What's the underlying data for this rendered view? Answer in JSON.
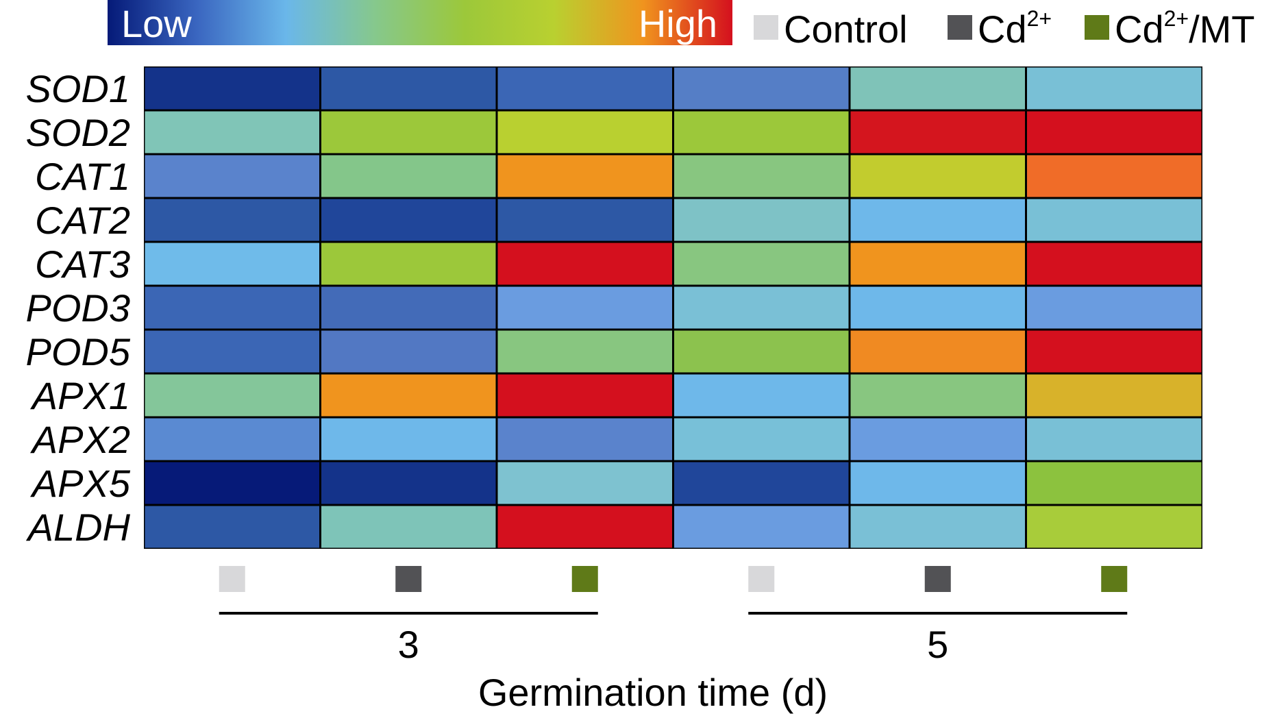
{
  "chart_data": {
    "type": "heatmap",
    "title": "",
    "xlabel": "Germination time (d)",
    "ylabel": "",
    "color_scale": {
      "low_label": "Low",
      "high_label": "High",
      "stops": [
        "#051a78",
        "#3a66c0",
        "#6ab7ea",
        "#86c88c",
        "#9cc83a",
        "#b9d030",
        "#f0941e",
        "#d4101e"
      ]
    },
    "treatments": [
      {
        "key": "control",
        "name": "Control",
        "name_sup": "",
        "name_suffix": "",
        "color": "#d8d8da"
      },
      {
        "key": "cd",
        "name": "Cd",
        "name_sup": "2+",
        "name_suffix": "",
        "color": "#525255"
      },
      {
        "key": "cdmt",
        "name": "Cd",
        "name_sup": "2+",
        "name_suffix": "/MT",
        "color": "#5f7a18"
      }
    ],
    "time_groups": [
      {
        "label": "3",
        "columns": [
          "control",
          "cd",
          "cdmt"
        ]
      },
      {
        "label": "5",
        "columns": [
          "control",
          "cd",
          "cdmt"
        ]
      }
    ],
    "rows": [
      "SOD1",
      "SOD2",
      "CAT1",
      "CAT2",
      "CAT3",
      "POD3",
      "POD5",
      "APX1",
      "APX2",
      "APX5",
      "ALDH"
    ],
    "cell_colors": [
      [
        "#14338a",
        "#2d58a5",
        "#3b66b5",
        "#557ec6",
        "#7fc3b8",
        "#79c0d6"
      ],
      [
        "#80c5b7",
        "#9cc83a",
        "#b9d030",
        "#9cc83a",
        "#d4151e",
        "#d4101e"
      ],
      [
        "#5a83cc",
        "#84c68a",
        "#f0941e",
        "#88c680",
        "#c2cc2e",
        "#f06c28"
      ],
      [
        "#2d58a5",
        "#20469a",
        "#2d58a5",
        "#7ec2c6",
        "#6eb8ea",
        "#79c0d6"
      ],
      [
        "#6fbbea",
        "#9cc83a",
        "#d4101e",
        "#88c680",
        "#f0941e",
        "#d4101e"
      ],
      [
        "#3b66b5",
        "#436bb8",
        "#6a9ce0",
        "#7ac0d6",
        "#6eb8ea",
        "#6a9ce0"
      ],
      [
        "#3b66b5",
        "#5278c3",
        "#88c680",
        "#8cc24e",
        "#f08a22",
        "#d4101e"
      ],
      [
        "#84c69a",
        "#f0941e",
        "#d4101e",
        "#6eb8ea",
        "#88c680",
        "#d8b22a"
      ],
      [
        "#5a8ad2",
        "#6eb8ea",
        "#5a83cc",
        "#78c0d8",
        "#6a9ce0",
        "#79c0d6"
      ],
      [
        "#061a78",
        "#14338a",
        "#7ec2d0",
        "#20469a",
        "#6eb8ea",
        "#8cc23e"
      ],
      [
        "#2d58a5",
        "#7ec4b8",
        "#d4101e",
        "#6a9ce0",
        "#7ac0d6",
        "#a8cc3a"
      ]
    ]
  }
}
